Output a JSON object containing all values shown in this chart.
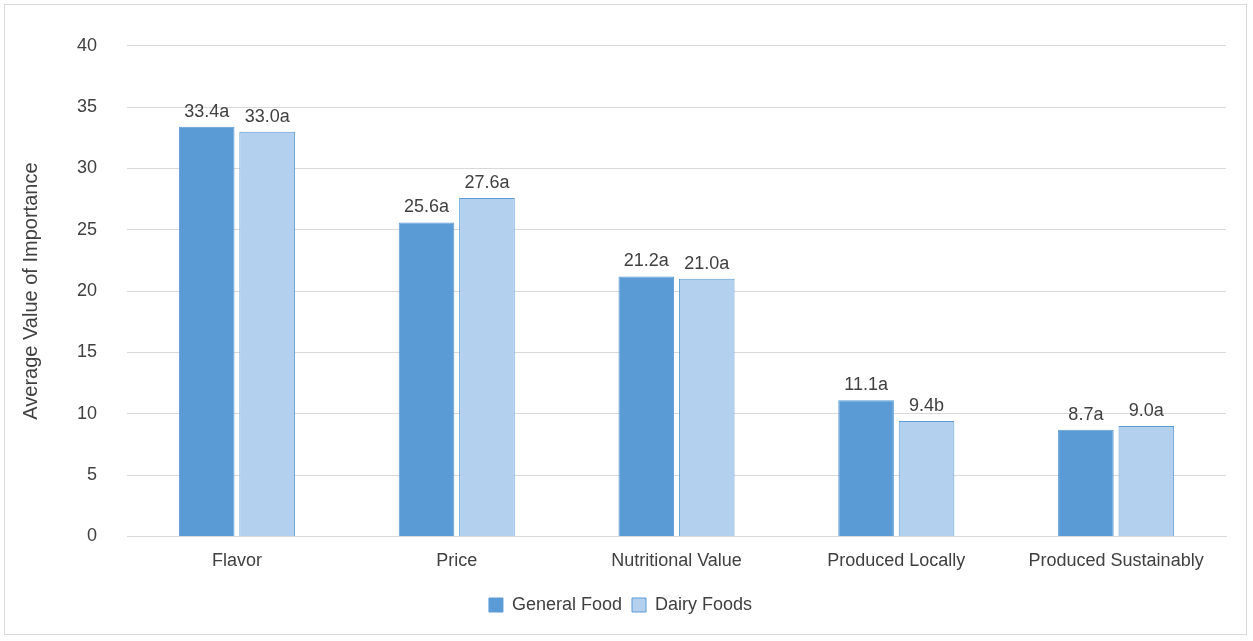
{
  "chart_data": {
    "type": "bar",
    "ylabel": "Average Value of Importance",
    "categories": [
      "Flavor",
      "Price",
      "Nutritional Value",
      "Produced Locally",
      "Produced Sustainably"
    ],
    "series": [
      {
        "name": "General Food",
        "color": "#5b9bd5",
        "values": [
          33.4,
          25.6,
          21.2,
          11.1,
          8.7
        ],
        "value_labels": [
          "33.4a",
          "25.6a",
          "21.2a",
          "11.1a",
          "8.7a"
        ]
      },
      {
        "name": "Dairy Foods",
        "color": "#b3d0ee",
        "values": [
          33.0,
          27.6,
          21.0,
          9.4,
          9.0
        ],
        "value_labels": [
          "33.0a",
          "27.6a",
          "21.0a",
          "9.4b",
          "9.0a"
        ]
      }
    ],
    "ylim": [
      0,
      40
    ],
    "yticks": [
      0,
      5,
      10,
      15,
      20,
      25,
      30,
      35,
      40
    ],
    "grid": "y",
    "legend": "bottom"
  }
}
